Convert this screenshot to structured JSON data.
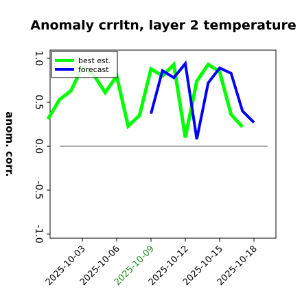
{
  "chart_data": {
    "type": "line",
    "title": "Anomaly crrltn, layer 2 temperature",
    "xlabel": "",
    "ylabel": "anom. corr.",
    "ylim": [
      -1.0,
      1.0
    ],
    "yticks": [
      "1.0",
      "0.5",
      "0.0",
      "-0.5",
      "-1.0"
    ],
    "xtick_labels": [
      {
        "label": "2025-10-03",
        "color": "#000000"
      },
      {
        "label": "2025-10-06",
        "color": "#000000"
      },
      {
        "label": "2025-10-09",
        "color": "#228B22"
      },
      {
        "label": "2025-10-12",
        "color": "#000000"
      },
      {
        "label": "2025-10-15",
        "color": "#000000"
      },
      {
        "label": "2025-10-18",
        "color": "#000000"
      }
    ],
    "reference_line": {
      "y": 0.0,
      "color": "#808080"
    },
    "legend": {
      "position": "top-left"
    },
    "series": [
      {
        "name": "best est.",
        "color": "#00ff00",
        "x": [
          "2025-09-30",
          "2025-10-01",
          "2025-10-02",
          "2025-10-03",
          "2025-10-04",
          "2025-10-05",
          "2025-10-06",
          "2025-10-07",
          "2025-10-08",
          "2025-10-09",
          "2025-10-10",
          "2025-10-11",
          "2025-10-12",
          "2025-10-13",
          "2025-10-14",
          "2025-10-15",
          "2025-10-16",
          "2025-10-17",
          "2025-10-18"
        ],
        "values": [
          0.31,
          0.53,
          0.63,
          0.9,
          0.81,
          0.61,
          0.8,
          0.23,
          0.35,
          0.88,
          0.8,
          0.93,
          0.1,
          0.74,
          0.93,
          0.85,
          0.36,
          0.22,
          null
        ]
      },
      {
        "name": "forecast",
        "color": "#0000ff",
        "x": [
          "2025-10-09",
          "2025-10-10",
          "2025-10-11",
          "2025-10-12",
          "2025-10-13",
          "2025-10-14",
          "2025-10-15",
          "2025-10-16",
          "2025-10-17",
          "2025-10-18"
        ],
        "values": [
          0.37,
          0.86,
          0.78,
          0.94,
          0.08,
          0.72,
          0.89,
          0.83,
          0.4,
          0.27
        ]
      }
    ]
  }
}
